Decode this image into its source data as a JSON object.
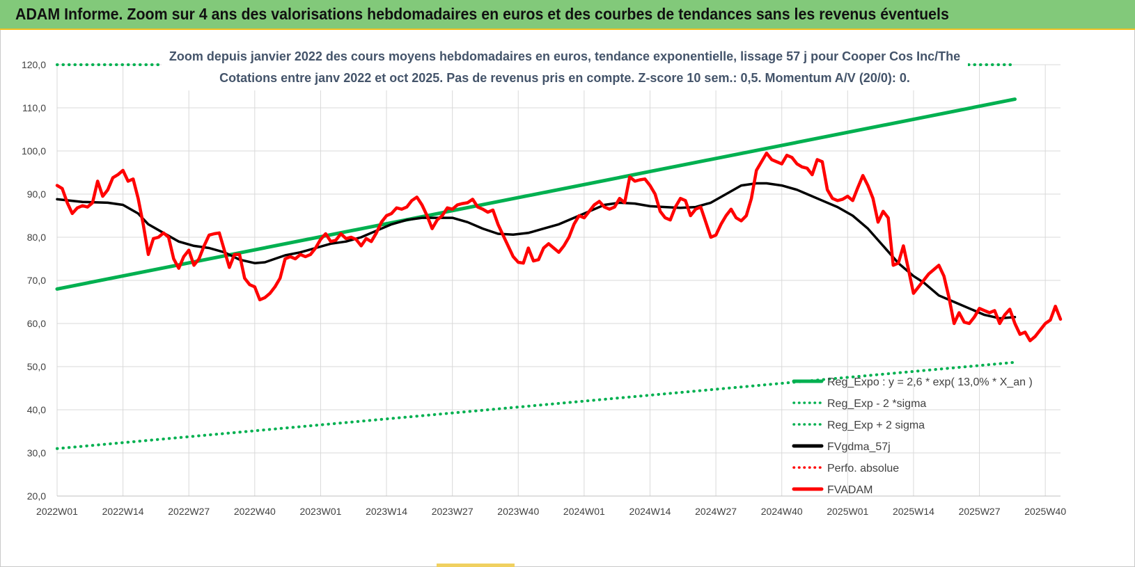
{
  "banner": {
    "title": "ADAM Informe. Zoom sur 4 ans des valorisations hebdomadaires en euros et des courbes de tendances sans les revenus éventuels"
  },
  "colors": {
    "banner_bg": "#82c97a",
    "banner_border": "#f0c020",
    "trend": "#00b050",
    "fvadam": "#ff0000",
    "smooth": "#000000",
    "gridline": "#d9d9d9",
    "subtitle_text": "#44546a"
  },
  "chart_data": {
    "type": "line",
    "subtitle_line1": "Zoom depuis janvier 2022 des cours moyens hebdomadaires en euros, tendance exponentielle, lissage 57 j pour Cooper Cos Inc/The",
    "subtitle_line2": "Cotations entre janv 2022 et oct 2025. Pas de revenus pris en compte. Z-score 10 sem.: 0,5. Momentum A/V (20/0): 0.",
    "ylim": [
      20,
      120
    ],
    "y_ticks": [
      "20,0",
      "30,0",
      "40,0",
      "50,0",
      "60,0",
      "70,0",
      "80,0",
      "90,0",
      "100,0",
      "110,0",
      "120,0"
    ],
    "x_ticks": [
      "2022W01",
      "2022W14",
      "2022W27",
      "2022W40",
      "2023W01",
      "2023W14",
      "2023W27",
      "2023W40",
      "2024W01",
      "2024W14",
      "2024W27",
      "2024W40",
      "2025W01",
      "2025W14",
      "2025W27",
      "2025W40"
    ],
    "grid": true,
    "legend_position": "bottom-right",
    "legend": [
      {
        "label": "Reg_Expo : y = 2,6 * exp( 13,0% * X_an )",
        "style": "solid",
        "color": "#00b050"
      },
      {
        "label": "Reg_Exp - 2 *sigma",
        "style": "dotted",
        "color": "#00b050"
      },
      {
        "label": "Reg_Exp + 2 sigma",
        "style": "dotted",
        "color": "#00b050"
      },
      {
        "label": "FVgdma_57j",
        "style": "solid",
        "color": "#000000"
      },
      {
        "label": "Perfo. absolue",
        "style": "dotted",
        "color": "#ff0000"
      },
      {
        "label": "FVADAM",
        "style": "solid",
        "color": "#ff0000"
      }
    ],
    "series": [
      {
        "name": "Reg_Expo : y = 2,6 * exp( 13,0% * X_an )",
        "points": [
          [
            0,
            68.0
          ],
          [
            189,
            112.0
          ]
        ]
      },
      {
        "name": "Reg_Exp - 2 *sigma",
        "points": [
          [
            0,
            31.0
          ],
          [
            189,
            51.0
          ]
        ]
      },
      {
        "name": "Reg_Exp + 2 sigma",
        "points": [
          [
            0,
            120.0
          ],
          [
            189,
            120.0
          ]
        ]
      },
      {
        "name": "FVgdma_57j",
        "points": [
          [
            0,
            88.8
          ],
          [
            5,
            88.2
          ],
          [
            10,
            88.0
          ],
          [
            13,
            87.5
          ],
          [
            16,
            85.5
          ],
          [
            18,
            83.0
          ],
          [
            21,
            81.0
          ],
          [
            24,
            79.0
          ],
          [
            27,
            78.0
          ],
          [
            30,
            77.5
          ],
          [
            33,
            76.5
          ],
          [
            36,
            74.8
          ],
          [
            39,
            74.0
          ],
          [
            41,
            74.2
          ],
          [
            43,
            75.0
          ],
          [
            45,
            75.8
          ],
          [
            48,
            76.5
          ],
          [
            51,
            77.5
          ],
          [
            54,
            78.5
          ],
          [
            57,
            79.0
          ],
          [
            60,
            80.0
          ],
          [
            63,
            81.5
          ],
          [
            66,
            83.0
          ],
          [
            69,
            84.0
          ],
          [
            72,
            84.5
          ],
          [
            75,
            84.5
          ],
          [
            78,
            84.5
          ],
          [
            81,
            83.5
          ],
          [
            84,
            82.0
          ],
          [
            87,
            80.8
          ],
          [
            90,
            80.6
          ],
          [
            93,
            81.0
          ],
          [
            96,
            82.0
          ],
          [
            99,
            83.0
          ],
          [
            102,
            84.5
          ],
          [
            105,
            86.0
          ],
          [
            108,
            87.5
          ],
          [
            111,
            88.0
          ],
          [
            114,
            87.8
          ],
          [
            117,
            87.2
          ],
          [
            120,
            87.0
          ],
          [
            123,
            86.8
          ],
          [
            126,
            87.0
          ],
          [
            129,
            88.0
          ],
          [
            132,
            90.0
          ],
          [
            135,
            92.0
          ],
          [
            138,
            92.5
          ],
          [
            140,
            92.5
          ],
          [
            143,
            92.0
          ],
          [
            146,
            91.0
          ],
          [
            148,
            90.0
          ],
          [
            151,
            88.5
          ],
          [
            154,
            87.0
          ],
          [
            157,
            85.0
          ],
          [
            160,
            82.0
          ],
          [
            163,
            78.0
          ],
          [
            166,
            74.0
          ],
          [
            169,
            71.0
          ],
          [
            171,
            69.5
          ],
          [
            174,
            66.5
          ],
          [
            177,
            65.0
          ],
          [
            180,
            63.5
          ],
          [
            183,
            62.0
          ],
          [
            186,
            61.2
          ],
          [
            189,
            61.5
          ]
        ]
      },
      {
        "name": "FVADAM",
        "points": [
          [
            0,
            92.0
          ],
          [
            1,
            91.3
          ],
          [
            2,
            88.0
          ],
          [
            3,
            85.5
          ],
          [
            4,
            86.8
          ],
          [
            5,
            87.3
          ],
          [
            6,
            87.0
          ],
          [
            7,
            88.0
          ],
          [
            8,
            93.0
          ],
          [
            9,
            89.5
          ],
          [
            10,
            91.0
          ],
          [
            11,
            93.8
          ],
          [
            12,
            94.5
          ],
          [
            13,
            95.5
          ],
          [
            14,
            93.0
          ],
          [
            15,
            93.5
          ],
          [
            16,
            89.0
          ],
          [
            17,
            83.0
          ],
          [
            18,
            76.0
          ],
          [
            19,
            79.7
          ],
          [
            20,
            80.0
          ],
          [
            21,
            81.0
          ],
          [
            22,
            80.0
          ],
          [
            23,
            75.0
          ],
          [
            24,
            72.8
          ],
          [
            25,
            75.5
          ],
          [
            26,
            77.0
          ],
          [
            27,
            73.5
          ],
          [
            28,
            75.0
          ],
          [
            29,
            78.0
          ],
          [
            30,
            80.5
          ],
          [
            31,
            80.8
          ],
          [
            32,
            81.0
          ],
          [
            33,
            77.0
          ],
          [
            34,
            73.0
          ],
          [
            35,
            76.0
          ],
          [
            36,
            76.0
          ],
          [
            37,
            70.5
          ],
          [
            38,
            69.0
          ],
          [
            39,
            68.5
          ],
          [
            40,
            65.5
          ],
          [
            41,
            66.0
          ],
          [
            42,
            67.0
          ],
          [
            43,
            68.5
          ],
          [
            44,
            70.5
          ],
          [
            45,
            75.0
          ],
          [
            46,
            75.5
          ],
          [
            47,
            75.0
          ],
          [
            48,
            76.0
          ],
          [
            49,
            75.5
          ],
          [
            50,
            76.0
          ],
          [
            51,
            77.5
          ],
          [
            52,
            79.5
          ],
          [
            53,
            80.8
          ],
          [
            54,
            79.0
          ],
          [
            55,
            79.3
          ],
          [
            56,
            80.8
          ],
          [
            57,
            79.7
          ],
          [
            58,
            80.0
          ],
          [
            59,
            79.5
          ],
          [
            60,
            78.0
          ],
          [
            61,
            79.7
          ],
          [
            62,
            79.0
          ],
          [
            63,
            81.0
          ],
          [
            64,
            83.5
          ],
          [
            65,
            85.0
          ],
          [
            66,
            85.5
          ],
          [
            67,
            86.8
          ],
          [
            68,
            86.5
          ],
          [
            69,
            87.0
          ],
          [
            70,
            88.5
          ],
          [
            71,
            89.3
          ],
          [
            72,
            87.5
          ],
          [
            73,
            85.0
          ],
          [
            74,
            82.0
          ],
          [
            75,
            84.0
          ],
          [
            76,
            85.0
          ],
          [
            77,
            86.8
          ],
          [
            78,
            86.5
          ],
          [
            79,
            87.5
          ],
          [
            80,
            87.8
          ],
          [
            81,
            88.0
          ],
          [
            82,
            88.8
          ],
          [
            83,
            87.0
          ],
          [
            84,
            86.5
          ],
          [
            85,
            85.8
          ],
          [
            86,
            86.3
          ],
          [
            87,
            83.0
          ],
          [
            88,
            80.5
          ],
          [
            89,
            78.0
          ],
          [
            90,
            75.5
          ],
          [
            91,
            74.2
          ],
          [
            92,
            74.0
          ],
          [
            93,
            77.5
          ],
          [
            94,
            74.5
          ],
          [
            95,
            74.8
          ],
          [
            96,
            77.5
          ],
          [
            97,
            78.5
          ],
          [
            98,
            77.5
          ],
          [
            99,
            76.5
          ],
          [
            100,
            78.0
          ],
          [
            101,
            80.0
          ],
          [
            102,
            83.0
          ],
          [
            103,
            85.0
          ],
          [
            104,
            84.5
          ],
          [
            105,
            86.0
          ],
          [
            106,
            87.5
          ],
          [
            107,
            88.3
          ],
          [
            108,
            87.0
          ],
          [
            109,
            86.5
          ],
          [
            110,
            87.0
          ],
          [
            111,
            89.0
          ],
          [
            112,
            88.0
          ],
          [
            113,
            94.0
          ],
          [
            114,
            93.0
          ],
          [
            115,
            93.3
          ],
          [
            116,
            93.5
          ],
          [
            117,
            92.0
          ],
          [
            118,
            90.0
          ],
          [
            119,
            86.0
          ],
          [
            120,
            84.5
          ],
          [
            121,
            84.0
          ],
          [
            122,
            87.0
          ],
          [
            123,
            89.0
          ],
          [
            124,
            88.5
          ],
          [
            125,
            85.0
          ],
          [
            126,
            86.5
          ],
          [
            127,
            87.0
          ],
          [
            128,
            83.5
          ],
          [
            129,
            80.0
          ],
          [
            130,
            80.5
          ],
          [
            131,
            83.0
          ],
          [
            132,
            85.0
          ],
          [
            133,
            86.5
          ],
          [
            134,
            84.5
          ],
          [
            135,
            83.8
          ],
          [
            136,
            85.0
          ],
          [
            137,
            89.0
          ],
          [
            138,
            95.5
          ],
          [
            139,
            97.5
          ],
          [
            140,
            99.5
          ],
          [
            141,
            98.0
          ],
          [
            142,
            97.5
          ],
          [
            143,
            97.0
          ],
          [
            144,
            99.0
          ],
          [
            145,
            98.5
          ],
          [
            146,
            97.0
          ],
          [
            147,
            96.3
          ],
          [
            148,
            96.0
          ],
          [
            149,
            94.5
          ],
          [
            150,
            98.0
          ],
          [
            151,
            97.5
          ],
          [
            152,
            91.0
          ],
          [
            153,
            89.0
          ],
          [
            154,
            88.5
          ],
          [
            155,
            88.8
          ],
          [
            156,
            89.5
          ],
          [
            157,
            88.5
          ],
          [
            158,
            91.5
          ],
          [
            159,
            94.3
          ],
          [
            160,
            92.0
          ],
          [
            161,
            89.0
          ],
          [
            162,
            83.5
          ],
          [
            163,
            86.0
          ],
          [
            164,
            84.5
          ],
          [
            165,
            73.5
          ],
          [
            166,
            74.0
          ],
          [
            167,
            78.0
          ],
          [
            168,
            72.5
          ],
          [
            169,
            67.0
          ],
          [
            170,
            68.5
          ],
          [
            171,
            70.0
          ],
          [
            172,
            71.5
          ],
          [
            173,
            72.5
          ],
          [
            174,
            73.5
          ],
          [
            175,
            71.0
          ],
          [
            176,
            66.0
          ],
          [
            177,
            60.0
          ],
          [
            178,
            62.5
          ],
          [
            179,
            60.3
          ],
          [
            180,
            60.0
          ],
          [
            181,
            61.5
          ],
          [
            182,
            63.5
          ],
          [
            183,
            63.0
          ],
          [
            184,
            62.5
          ],
          [
            185,
            63.0
          ],
          [
            186,
            60.0
          ],
          [
            187,
            62.0
          ],
          [
            188,
            63.3
          ],
          [
            189,
            60.0
          ],
          [
            190,
            57.5
          ],
          [
            191,
            58.0
          ],
          [
            192,
            56.0
          ],
          [
            193,
            57.0
          ],
          [
            194,
            58.5
          ],
          [
            195,
            60.0
          ],
          [
            196,
            60.8
          ],
          [
            197,
            64.0
          ],
          [
            198,
            61.0
          ]
        ]
      }
    ]
  }
}
